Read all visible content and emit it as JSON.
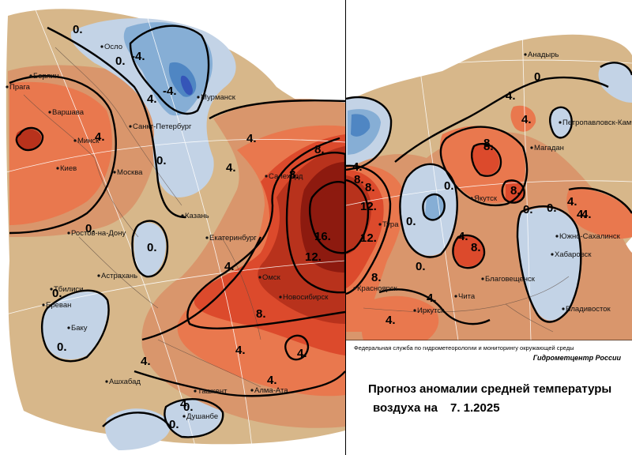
{
  "colors": {
    "sea": "#ffffff",
    "cold_weak": "#c3d3e6",
    "cold_mid": "#86aed5",
    "cold_strong": "#4f86c3",
    "cold_core": "#3555b8",
    "neutral": "#d7b78a",
    "warm_weak": "#d9966c",
    "warm_mid": "#e9784e",
    "warm_strong": "#dc4a2c",
    "warm_deep": "#b8321c",
    "warm_core": "#8d1a0f",
    "contour": "#000000"
  },
  "left_panel": {
    "cities": [
      "Осло",
      "Берлин",
      "Прага",
      "Варшава",
      "Минск",
      "Киев",
      "Москва",
      "Санкт-Петербург",
      "Мурманск",
      "Казань",
      "Ростов-на-Дону",
      "Астрахань",
      "Тбилиси",
      "Ереван",
      "Баку",
      "Екатеринбург",
      "Салехард",
      "Омск",
      "Новосибирск",
      "Ашхабад",
      "Ташкент",
      "Алма-Ата",
      "Душанбе"
    ],
    "contour_labels": [
      "0.",
      "0.",
      "-4.",
      "-4.",
      "4.",
      "4.",
      "0.",
      "4.",
      "8.",
      "8.",
      "4.",
      "0.",
      "0.",
      "4.",
      "8.",
      "12.",
      "16.",
      "0.",
      "0.",
      "4.",
      "4.",
      "4.",
      "4.",
      "4.",
      "0.",
      "0."
    ]
  },
  "right_panel": {
    "cities": [
      "Анадырь",
      "Магадан",
      "Петропавловск-Камчатский",
      "Якутск",
      "Тура",
      "Красноярск",
      "Иркутск",
      "Чита",
      "Благовещенск",
      "Южно-Сахалинск",
      "Хабаровск",
      "Владивосток"
    ],
    "contour_labels": [
      "0.",
      "0.",
      "4.",
      "8.",
      "8.",
      "4.",
      "8.",
      "12.",
      "12.",
      "8.",
      "0.",
      "0.",
      "4.",
      "8.",
      "8.",
      "0.",
      "4.",
      "4.",
      "4.",
      "4.",
      "4.",
      "8.",
      "0.",
      "4."
    ]
  },
  "credits": {
    "agency": "Федеральная служба по гидрометеорологии и мониторингу окружающей среды",
    "center": "Гидрометцентр России",
    "title_line1": "Прогноз аномалии средней температуры",
    "title_line2": "воздуха на",
    "date": "7. 1.2025"
  }
}
